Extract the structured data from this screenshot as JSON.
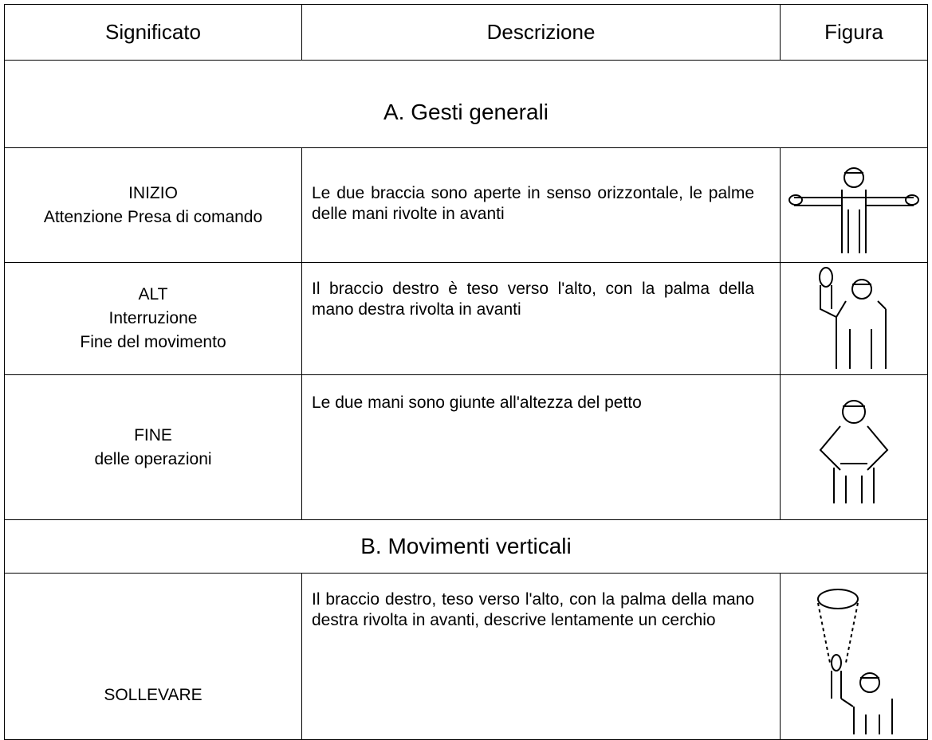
{
  "table": {
    "headers": [
      "Significato",
      "Descrizione",
      "Figura"
    ],
    "sections": [
      {
        "title": "A. Gesti generali",
        "rows": [
          {
            "meaning": [
              "INIZIO",
              "Attenzione Presa di comando"
            ],
            "description": "Le due braccia sono aperte in senso orizzontale, le palme delle mani rivolte in avanti"
          },
          {
            "meaning": [
              "ALT",
              "Interruzione",
              "Fine del movimento"
            ],
            "description": "Il braccio destro è teso verso l'alto, con la palma della mano destra rivolta in avanti"
          },
          {
            "meaning": [
              "FINE",
              "delle operazioni"
            ],
            "description": "Le due mani sono giunte all'altezza del petto"
          }
        ]
      },
      {
        "title": "B. Movimenti verticali",
        "rows": [
          {
            "meaning": [
              "SOLLEVARE"
            ],
            "description": "Il braccio destro, teso verso l'alto, con la palma della mano destra rivolta in avanti, descrive lentamente un cerchio"
          }
        ]
      }
    ]
  }
}
